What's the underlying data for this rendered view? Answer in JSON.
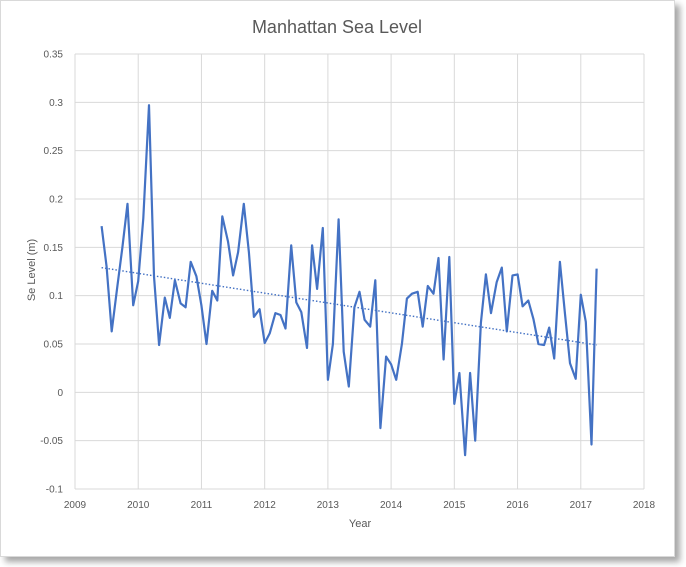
{
  "chart_data": {
    "type": "line",
    "title": "Manhattan Sea Level",
    "xlabel": "Year",
    "ylabel": "Se Level (m)",
    "xlim": [
      2009,
      2018
    ],
    "ylim": [
      -0.1,
      0.35
    ],
    "x_ticks": [
      "2009",
      "2010",
      "2011",
      "2012",
      "2013",
      "2014",
      "2015",
      "2016",
      "2017",
      "2018"
    ],
    "y_ticks": [
      "0.35",
      "0.3",
      "0.25",
      "0.2",
      "0.15",
      "0.1",
      "0.05",
      "0",
      "-0.05",
      "-0.1"
    ],
    "grid": "vertical and horizontal",
    "legend": "none",
    "colors": {
      "series": "#4472c4",
      "trendline": "#4472c4"
    },
    "series": [
      {
        "style": "solid",
        "x": [
          2009.42,
          2009.5,
          2009.58,
          2009.67,
          2009.75,
          2009.83,
          2009.92,
          2010.0,
          2010.08,
          2010.17,
          2010.25,
          2010.33,
          2010.42,
          2010.5,
          2010.58,
          2010.67,
          2010.75,
          2010.83,
          2010.92,
          2011.0,
          2011.08,
          2011.17,
          2011.25,
          2011.33,
          2011.42,
          2011.5,
          2011.58,
          2011.67,
          2011.75,
          2011.83,
          2011.92,
          2012.0,
          2012.08,
          2012.17,
          2012.25,
          2012.33,
          2012.42,
          2012.5,
          2012.58,
          2012.67,
          2012.75,
          2012.83,
          2012.92,
          2013.0,
          2013.08,
          2013.17,
          2013.25,
          2013.33,
          2013.42,
          2013.5,
          2013.58,
          2013.67,
          2013.75,
          2013.83,
          2013.92,
          2014.0,
          2014.08,
          2014.17,
          2014.25,
          2014.33,
          2014.42,
          2014.5,
          2014.58,
          2014.67,
          2014.75,
          2014.83,
          2014.92,
          2015.0,
          2015.08,
          2015.17,
          2015.25,
          2015.33,
          2015.42,
          2015.5,
          2015.58,
          2015.67,
          2015.75,
          2015.83,
          2015.92,
          2016.0,
          2016.08,
          2016.17,
          2016.25,
          2016.33,
          2016.42,
          2016.5,
          2016.58,
          2016.67,
          2016.75,
          2016.83,
          2016.92,
          2017.0,
          2017.08,
          2017.17,
          2017.25
        ],
        "y": [
          0.172,
          0.13,
          0.063,
          0.11,
          0.15,
          0.195,
          0.09,
          0.115,
          0.18,
          0.297,
          0.12,
          0.049,
          0.098,
          0.077,
          0.116,
          0.092,
          0.088,
          0.135,
          0.12,
          0.09,
          0.05,
          0.105,
          0.095,
          0.182,
          0.156,
          0.121,
          0.145,
          0.195,
          0.145,
          0.078,
          0.086,
          0.051,
          0.061,
          0.082,
          0.08,
          0.066,
          0.152,
          0.093,
          0.083,
          0.046,
          0.152,
          0.107,
          0.17,
          0.013,
          0.05,
          0.179,
          0.042,
          0.006,
          0.088,
          0.104,
          0.075,
          0.068,
          0.116,
          -0.037,
          0.037,
          0.029,
          0.013,
          0.05,
          0.097,
          0.102,
          0.104,
          0.068,
          0.11,
          0.102,
          0.139,
          0.034,
          0.14,
          -0.012,
          0.02,
          -0.065,
          0.02,
          -0.05,
          0.072,
          0.122,
          0.082,
          0.114,
          0.129,
          0.063,
          0.121,
          0.122,
          0.089,
          0.095,
          0.076,
          0.05,
          0.049,
          0.067,
          0.035,
          0.135,
          0.081,
          0.03,
          0.014,
          0.101,
          0.073,
          -0.054,
          0.128
        ]
      },
      {
        "style": "dotted",
        "x": [
          2009.42,
          2017.25
        ],
        "y": [
          0.129,
          0.049
        ]
      }
    ]
  }
}
